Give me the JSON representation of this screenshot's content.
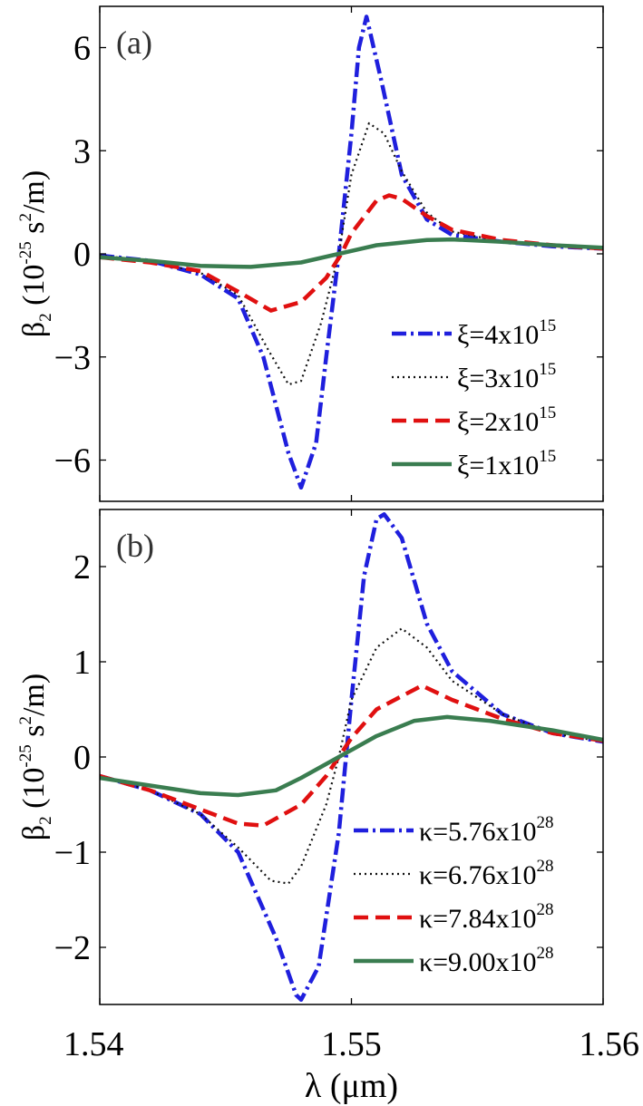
{
  "chart_data": [
    {
      "type": "line",
      "panel_label": "(a)",
      "ylabel": {
        "symbol": "β",
        "sub": "2",
        "pre": " (10",
        "exp": "-25",
        "mid": " s",
        "exp2": "2",
        "post": "/m)"
      },
      "xlabel": "",
      "xlim": [
        1.54,
        1.56
      ],
      "ylim": [
        -7.2,
        7.2
      ],
      "xticks": [
        "1.54",
        "1.55",
        "1.56"
      ],
      "yticks": [
        {
          "value": 6,
          "label": "6"
        },
        {
          "value": 3,
          "label": "3"
        },
        {
          "value": 0,
          "label": "0"
        },
        {
          "value": -3,
          "label": "−3"
        },
        {
          "value": -6,
          "label": "−6"
        }
      ],
      "legend_position": "bottom-right",
      "series": [
        {
          "name": "ξ=4x10",
          "exp": "15",
          "color": "#1f1fdd",
          "style": "dashdot",
          "x": [
            1.54,
            1.542,
            1.544,
            1.5455,
            1.5465,
            1.5475,
            1.548,
            1.5486,
            1.549,
            1.5495,
            1.55,
            1.5503,
            1.5506,
            1.5512,
            1.552,
            1.553,
            1.554,
            1.556,
            1.558,
            1.56
          ],
          "y": [
            -0.05,
            -0.2,
            -0.6,
            -1.3,
            -3.0,
            -5.8,
            -6.8,
            -5.5,
            -3.0,
            0.0,
            3.5,
            6.0,
            6.9,
            5.0,
            2.3,
            1.0,
            0.55,
            0.35,
            0.22,
            0.15
          ]
        },
        {
          "name": "ξ=3x10",
          "exp": "15",
          "color": "#111111",
          "style": "dotted",
          "x": [
            1.54,
            1.542,
            1.544,
            1.5455,
            1.5467,
            1.5475,
            1.548,
            1.5488,
            1.5495,
            1.55,
            1.5507,
            1.5513,
            1.552,
            1.553,
            1.554,
            1.556,
            1.558,
            1.56
          ],
          "y": [
            -0.05,
            -0.2,
            -0.55,
            -1.2,
            -2.8,
            -3.8,
            -3.7,
            -2.0,
            0.0,
            2.3,
            3.8,
            3.5,
            2.4,
            1.2,
            0.65,
            0.35,
            0.22,
            0.15
          ]
        },
        {
          "name": "ξ=2x10",
          "exp": "15",
          "color": "#e01010",
          "style": "dashed",
          "x": [
            1.54,
            1.542,
            1.544,
            1.5455,
            1.5468,
            1.548,
            1.549,
            1.5496,
            1.55,
            1.551,
            1.5515,
            1.552,
            1.553,
            1.554,
            1.556,
            1.558,
            1.56
          ],
          "y": [
            -0.1,
            -0.25,
            -0.5,
            -1.1,
            -1.65,
            -1.4,
            -0.7,
            0.0,
            0.6,
            1.55,
            1.7,
            1.6,
            1.1,
            0.7,
            0.4,
            0.25,
            0.15
          ]
        },
        {
          "name": "ξ=1x10",
          "exp": "15",
          "color": "#3a7d50",
          "style": "solid",
          "x": [
            1.54,
            1.542,
            1.544,
            1.546,
            1.548,
            1.5495,
            1.551,
            1.553,
            1.554,
            1.556,
            1.558,
            1.56
          ],
          "y": [
            -0.1,
            -0.2,
            -0.35,
            -0.38,
            -0.25,
            0.0,
            0.25,
            0.4,
            0.42,
            0.35,
            0.25,
            0.18
          ]
        }
      ]
    },
    {
      "type": "line",
      "panel_label": "(b)",
      "ylabel": {
        "symbol": "β",
        "sub": "2",
        "pre": " (10",
        "exp": "-25",
        "mid": " s",
        "exp2": "2",
        "post": "/m)"
      },
      "xlabel": "λ (μm)",
      "xlim": [
        1.54,
        1.56
      ],
      "ylim": [
        -2.6,
        2.6
      ],
      "xticks": [
        "1.54",
        "1.55",
        "1.56"
      ],
      "yticks": [
        {
          "value": 2,
          "label": "2"
        },
        {
          "value": 1,
          "label": "1"
        },
        {
          "value": 0,
          "label": "0"
        },
        {
          "value": -1,
          "label": "−1"
        },
        {
          "value": -2,
          "label": "−2"
        }
      ],
      "legend_position": "bottom-right",
      "series": [
        {
          "name": "κ=5.76x10",
          "exp": "28",
          "color": "#1f1fdd",
          "style": "dashdot",
          "x": [
            1.54,
            1.542,
            1.544,
            1.5455,
            1.547,
            1.5478,
            1.548,
            1.5487,
            1.5495,
            1.55,
            1.5505,
            1.551,
            1.5513,
            1.552,
            1.553,
            1.554,
            1.556,
            1.558,
            1.56
          ],
          "y": [
            -0.2,
            -0.35,
            -0.6,
            -1.0,
            -1.9,
            -2.5,
            -2.55,
            -2.2,
            -0.8,
            0.6,
            1.9,
            2.5,
            2.55,
            2.3,
            1.4,
            0.9,
            0.45,
            0.25,
            0.16
          ]
        },
        {
          "name": "κ=6.76x10",
          "exp": "28",
          "color": "#111111",
          "style": "dotted",
          "x": [
            1.54,
            1.542,
            1.544,
            1.5455,
            1.5468,
            1.5475,
            1.548,
            1.549,
            1.5495,
            1.55,
            1.551,
            1.552,
            1.553,
            1.554,
            1.556,
            1.558,
            1.56
          ],
          "y": [
            -0.2,
            -0.35,
            -0.6,
            -0.95,
            -1.3,
            -1.33,
            -1.15,
            -0.5,
            0.0,
            0.6,
            1.15,
            1.35,
            1.15,
            0.8,
            0.45,
            0.25,
            0.16
          ]
        },
        {
          "name": "κ=7.84x10",
          "exp": "28",
          "color": "#e01010",
          "style": "dashed",
          "x": [
            1.54,
            1.542,
            1.544,
            1.5455,
            1.5465,
            1.548,
            1.549,
            1.5495,
            1.55,
            1.551,
            1.5528,
            1.554,
            1.556,
            1.558,
            1.56
          ],
          "y": [
            -0.2,
            -0.35,
            -0.55,
            -0.7,
            -0.72,
            -0.5,
            -0.2,
            0.0,
            0.2,
            0.5,
            0.75,
            0.6,
            0.4,
            0.25,
            0.17
          ]
        },
        {
          "name": "κ=9.00x10",
          "exp": "28",
          "color": "#3a7d50",
          "style": "solid",
          "x": [
            1.54,
            1.542,
            1.544,
            1.5455,
            1.547,
            1.548,
            1.5495,
            1.551,
            1.5525,
            1.5538,
            1.5555,
            1.558,
            1.56
          ],
          "y": [
            -0.22,
            -0.3,
            -0.38,
            -0.4,
            -0.35,
            -0.22,
            0.0,
            0.22,
            0.38,
            0.42,
            0.38,
            0.28,
            0.18
          ]
        }
      ]
    }
  ]
}
